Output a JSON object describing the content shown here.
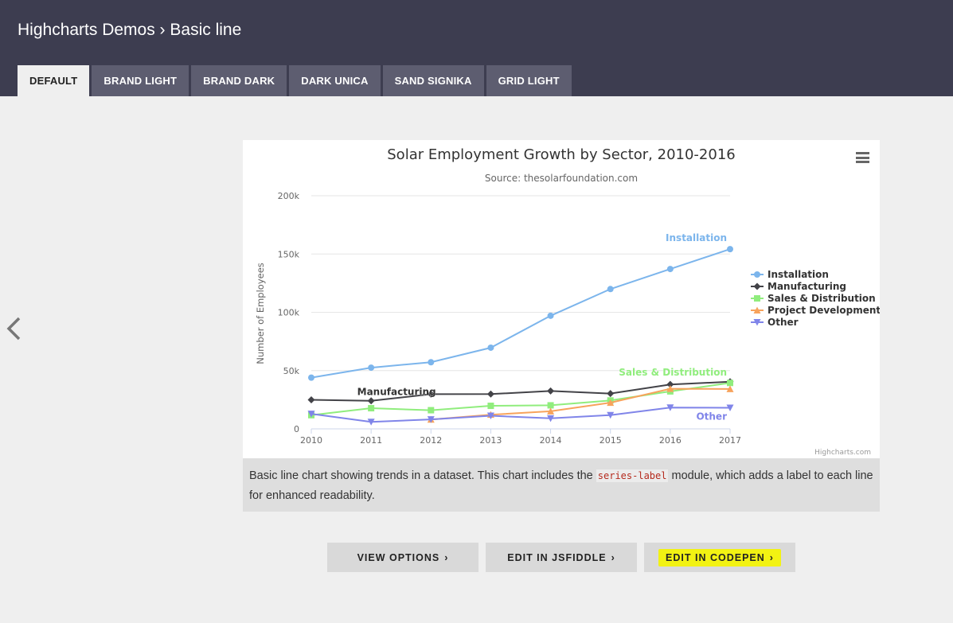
{
  "header": {
    "title": "Highcharts Demos › Basic line",
    "tabs": [
      "DEFAULT",
      "BRAND LIGHT",
      "BRAND DARK",
      "DARK UNICA",
      "SAND SIGNIKA",
      "GRID LIGHT"
    ]
  },
  "chart_data": {
    "type": "line",
    "title": "Solar Employment Growth by Sector, 2010-2016",
    "subtitle": "Source: thesolarfoundation.com",
    "ylabel": "Number of Employees",
    "xlabel": "",
    "x": [
      2010,
      2011,
      2012,
      2013,
      2014,
      2015,
      2016,
      2017
    ],
    "ylim": [
      0,
      200000
    ],
    "yticks": [
      "0",
      "50k",
      "100k",
      "150k",
      "200k"
    ],
    "grid": true,
    "legend_position": "right",
    "credits": "Highcharts.com",
    "series": [
      {
        "name": "Installation",
        "color": "#7cb5ec",
        "marker": "circle",
        "values": [
          43934,
          52503,
          57177,
          69658,
          97031,
          119931,
          137133,
          154175
        ]
      },
      {
        "name": "Manufacturing",
        "color": "#434348",
        "marker": "diamond",
        "values": [
          24916,
          24064,
          29742,
          29851,
          32490,
          30282,
          38121,
          40434
        ]
      },
      {
        "name": "Sales & Distribution",
        "color": "#90ed7d",
        "marker": "square",
        "values": [
          11744,
          17722,
          16005,
          19771,
          20185,
          24377,
          32147,
          39387
        ]
      },
      {
        "name": "Project Development",
        "color": "#f7a35c",
        "marker": "triangle",
        "values": [
          null,
          null,
          7988,
          12169,
          15112,
          22452,
          34400,
          34227
        ]
      },
      {
        "name": "Other",
        "color": "#8085e9",
        "marker": "triangle-down",
        "values": [
          12908,
          5948,
          8105,
          11248,
          8989,
          11816,
          18274,
          18111
        ]
      }
    ],
    "series_labels": [
      "Installation",
      "Manufacturing",
      "Sales & Distribution",
      "Other"
    ]
  },
  "description": {
    "before": "Basic line chart showing trends in a dataset. This chart includes the ",
    "code": "series-label",
    "after": " module, which adds a label to each line for enhanced readability."
  },
  "buttons": {
    "view_options": "VIEW OPTIONS",
    "edit_jsfiddle": "EDIT IN JSFIDDLE",
    "edit_codepen": "EDIT IN CODEPEN"
  },
  "icons": {
    "menu": "hamburger-menu-icon",
    "prev": "chevron-left-icon",
    "chevron": "chevron-right-icon"
  }
}
